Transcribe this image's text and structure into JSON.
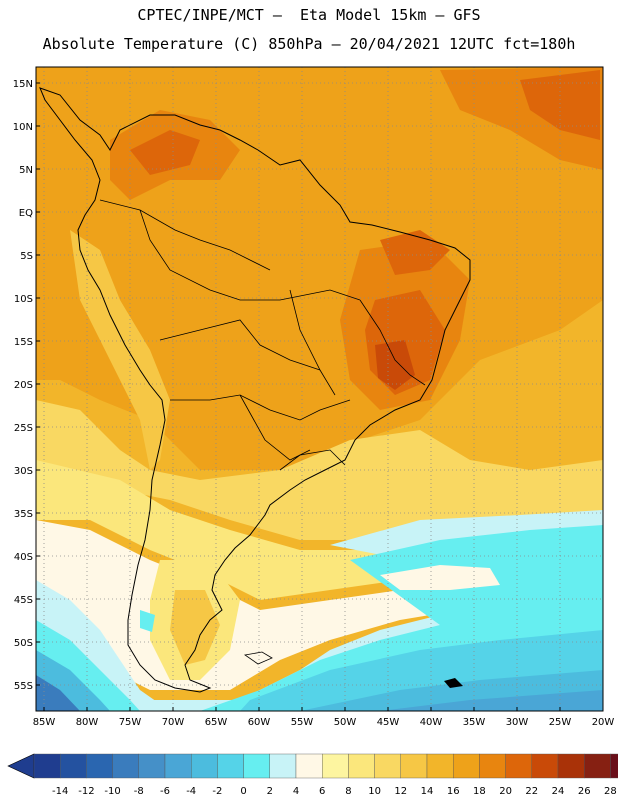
{
  "header": {
    "line1": "CPTEC/INPE/MCT –  Eta Model 15km – GFS",
    "line2": "Absolute Temperature (C) 850hPa – 20/04/2021 12UTC fct=180h"
  },
  "map": {
    "lat_labels": [
      "15N",
      "10N",
      "5N",
      "EQ",
      "5S",
      "10S",
      "15S",
      "20S",
      "25S",
      "30S",
      "35S",
      "40S",
      "45S",
      "50S",
      "55S"
    ],
    "lon_labels": [
      "85W",
      "80W",
      "75W",
      "70W",
      "65W",
      "60W",
      "55W",
      "50W",
      "45W",
      "40W",
      "35W",
      "30W",
      "25W",
      "20W"
    ]
  },
  "legend": {
    "labels": [
      "-14",
      "-12",
      "-10",
      "-8",
      "-6",
      "-4",
      "-2",
      "0",
      "2",
      "4",
      "6",
      "8",
      "10",
      "12",
      "14",
      "16",
      "18",
      "20",
      "22",
      "24",
      "26",
      "28"
    ],
    "colors": [
      "#1f3d8f",
      "#2452a0",
      "#2a66b0",
      "#3a7cbd",
      "#4590c8",
      "#4aa6d6",
      "#4cbcde",
      "#55d3e8",
      "#66eef0",
      "#c8f3f7",
      "#fff8e6",
      "#fdf5a0",
      "#fbe77c",
      "#f9d862",
      "#f6c745",
      "#f2b52a",
      "#eea21a",
      "#e8850f",
      "#dd660a",
      "#c94a08",
      "#a93208",
      "#862012",
      "#6a0f1a"
    ]
  }
}
